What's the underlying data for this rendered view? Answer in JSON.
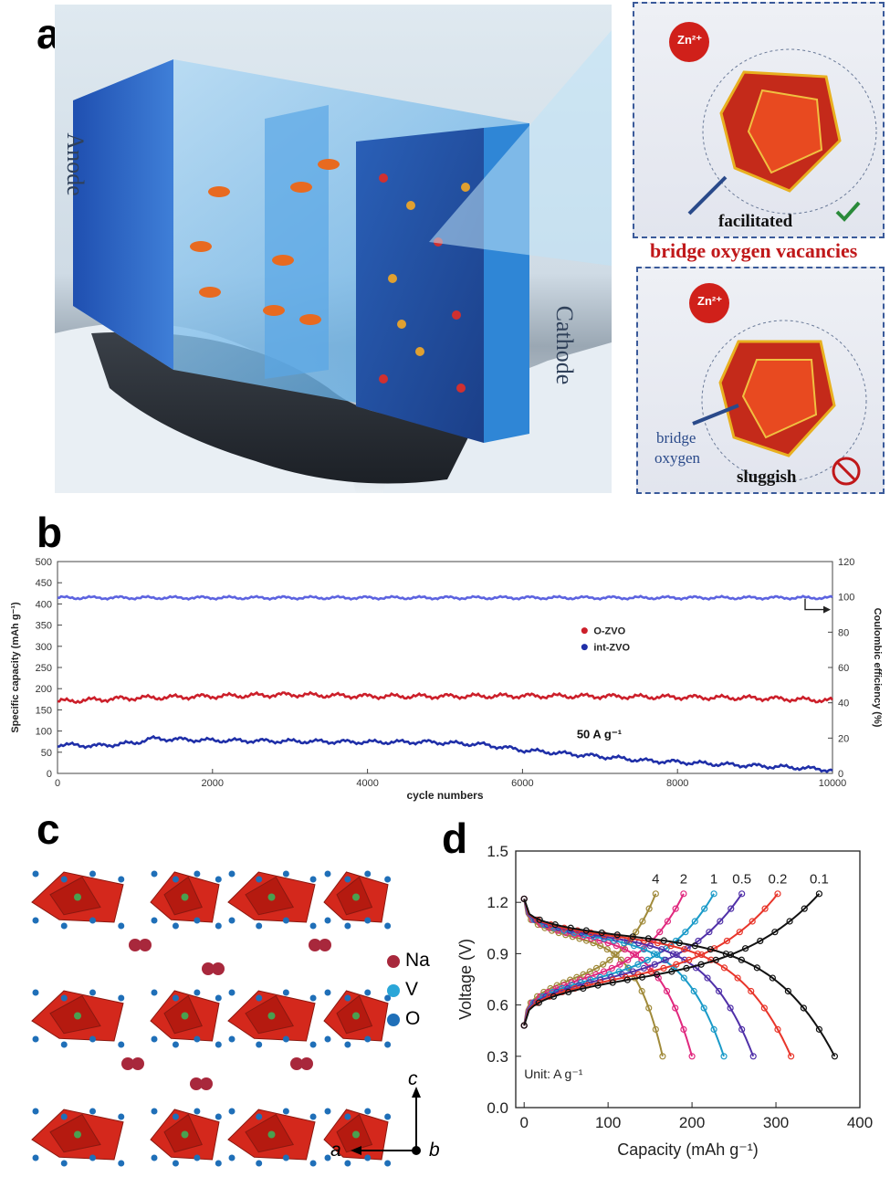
{
  "panels": {
    "a": {
      "letter": "a",
      "anode_label": "Anode",
      "cathode_label": "Cathode",
      "inset_top": {
        "ion": "Zn²⁺",
        "caption": "facilitated"
      },
      "vacancy_caption": "bridge oxygen vacancies",
      "inset_bottom": {
        "ion": "Zn²⁺",
        "bridge_label_1": "bridge",
        "bridge_label_2": "oxygen",
        "caption": "sluggish"
      },
      "colors": {
        "ion": "#d0201a",
        "vacancy_text": "#c0181a",
        "frame": "#3a5a9a"
      }
    },
    "b": {
      "letter": "b"
    },
    "c": {
      "letter": "c",
      "legend": [
        {
          "label": "Na",
          "color": "#a8283c"
        },
        {
          "label": "V",
          "color": "#2aa6d8"
        },
        {
          "label": "O",
          "color": "#1f6fb8"
        }
      ],
      "axes": {
        "a": "a",
        "b": "b",
        "c": "c"
      }
    },
    "d": {
      "letter": "d"
    }
  },
  "chart_data": [
    {
      "type": "line",
      "panel": "b",
      "xlabel": "cycle numbers",
      "ylabel": "Specific capacity (mAh g⁻¹)",
      "ylabel_right": "Coulombic efficiency (%)",
      "xlim": [
        0,
        10000
      ],
      "ylim": [
        0,
        500
      ],
      "ylim_right": [
        0,
        120
      ],
      "xticks": [
        0,
        2000,
        4000,
        6000,
        8000,
        10000
      ],
      "yticks": [
        0,
        50,
        100,
        150,
        200,
        250,
        300,
        350,
        400,
        450,
        500
      ],
      "yticks_right": [
        0,
        20,
        40,
        60,
        80,
        100,
        120
      ],
      "annotation": "50 A g⁻¹",
      "legend_placement": "center-right",
      "series": [
        {
          "name": "O-ZVO",
          "color": "#cc1f2a",
          "x": [
            0,
            1000,
            2000,
            3000,
            4000,
            5000,
            6000,
            7000,
            8000,
            9000,
            10000
          ],
          "values": [
            170,
            178,
            182,
            186,
            182,
            182,
            183,
            182,
            180,
            178,
            172
          ]
        },
        {
          "name": "int-ZVO",
          "color": "#1f2fa8",
          "x": [
            0,
            500,
            1000,
            1200,
            2000,
            3000,
            4000,
            4800,
            5500,
            6000,
            7000,
            7600,
            8000,
            8500,
            9000,
            9500,
            10000
          ],
          "values": [
            68,
            65,
            72,
            82,
            78,
            76,
            74,
            74,
            68,
            55,
            40,
            30,
            27,
            22,
            18,
            14,
            8
          ]
        },
        {
          "name": "Coulombic efficiency",
          "color": "#5c63e0",
          "axis": "right",
          "x": [
            0,
            2000,
            4000,
            6000,
            8000,
            10000
          ],
          "values": [
            99.5,
            99.5,
            99.5,
            99.5,
            99.5,
            99.5
          ]
        }
      ]
    },
    {
      "type": "line",
      "panel": "d",
      "xlabel": "Capacity (mAh g⁻¹)",
      "ylabel": "Voltage (V)",
      "xlim": [
        -10,
        400
      ],
      "ylim": [
        0.0,
        1.5
      ],
      "xticks": [
        0,
        100,
        200,
        300,
        400
      ],
      "yticks": [
        0.0,
        0.3,
        0.6,
        0.9,
        1.2,
        1.5
      ],
      "annotation": "Unit: A g⁻¹",
      "series": [
        {
          "name": "4",
          "color": "#a08a3a",
          "capacity": 165
        },
        {
          "name": "2",
          "color": "#e0287e",
          "capacity": 200
        },
        {
          "name": "1",
          "color": "#1a9ac8",
          "capacity": 238
        },
        {
          "name": "0.5",
          "color": "#5030a8",
          "capacity": 273
        },
        {
          "name": "0.2",
          "color": "#e8352a",
          "capacity": 318
        },
        {
          "name": "0.1",
          "color": "#111111",
          "capacity": 370
        }
      ]
    }
  ]
}
